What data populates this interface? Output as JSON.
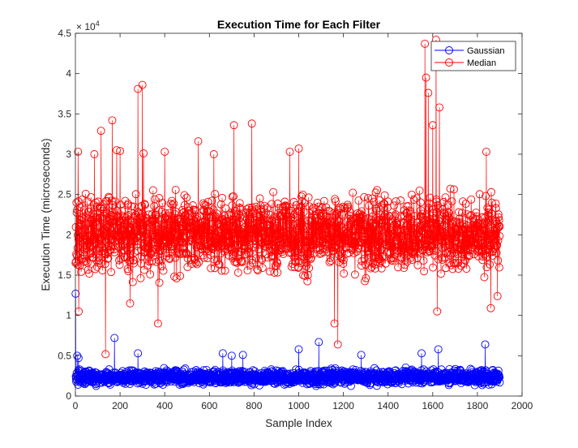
{
  "chart_data": {
    "type": "line",
    "title": "Execution Time for Each Filter",
    "xlabel": "Sample Index",
    "ylabel": "Execution Time (microseconds)",
    "xlim": [
      0,
      2000
    ],
    "ylim": [
      0,
      45000
    ],
    "x_ticks": [
      0,
      200,
      400,
      600,
      800,
      1000,
      1200,
      1400,
      1600,
      1800,
      2000
    ],
    "y_ticks": [
      0,
      5000,
      10000,
      15000,
      20000,
      25000,
      30000,
      35000,
      40000,
      45000
    ],
    "y_tick_labels": [
      "0",
      "0.5",
      "1",
      "1.5",
      "2",
      "2.5",
      "3",
      "3.5",
      "4",
      "4.5"
    ],
    "y_exponent_label": "× 10",
    "y_exponent_power": "4",
    "grid": false,
    "legend_position": "top-right",
    "n_points": 1900,
    "x_step": 1,
    "series": [
      {
        "name": "Gaussian",
        "color": "#0000ff",
        "marker": "circle",
        "typical_range": [
          1200,
          3500
        ],
        "notable_points": [
          {
            "x": 1,
            "y": 12700
          },
          {
            "x": 8,
            "y": 5000
          },
          {
            "x": 14,
            "y": 4700
          },
          {
            "x": 175,
            "y": 7200
          },
          {
            "x": 280,
            "y": 5300
          },
          {
            "x": 660,
            "y": 5300
          },
          {
            "x": 700,
            "y": 5000
          },
          {
            "x": 750,
            "y": 5100
          },
          {
            "x": 1000,
            "y": 5800
          },
          {
            "x": 1090,
            "y": 6700
          },
          {
            "x": 1280,
            "y": 5100
          },
          {
            "x": 1550,
            "y": 5300
          },
          {
            "x": 1625,
            "y": 5800
          },
          {
            "x": 1835,
            "y": 6400
          }
        ]
      },
      {
        "name": "Median",
        "color": "#ff0000",
        "marker": "circle",
        "typical_range": [
          14000,
          26000
        ],
        "notable_points": [
          {
            "x": 12,
            "y": 30300
          },
          {
            "x": 15,
            "y": 10500
          },
          {
            "x": 85,
            "y": 30000
          },
          {
            "x": 115,
            "y": 32900
          },
          {
            "x": 135,
            "y": 5200
          },
          {
            "x": 165,
            "y": 34200
          },
          {
            "x": 185,
            "y": 30500
          },
          {
            "x": 200,
            "y": 30400
          },
          {
            "x": 245,
            "y": 11500
          },
          {
            "x": 280,
            "y": 38100
          },
          {
            "x": 300,
            "y": 38600
          },
          {
            "x": 305,
            "y": 30100
          },
          {
            "x": 370,
            "y": 9000
          },
          {
            "x": 400,
            "y": 30300
          },
          {
            "x": 550,
            "y": 31600
          },
          {
            "x": 620,
            "y": 30000
          },
          {
            "x": 710,
            "y": 33600
          },
          {
            "x": 790,
            "y": 33800
          },
          {
            "x": 960,
            "y": 30300
          },
          {
            "x": 1000,
            "y": 30700
          },
          {
            "x": 1160,
            "y": 9000
          },
          {
            "x": 1175,
            "y": 6400
          },
          {
            "x": 1565,
            "y": 43700
          },
          {
            "x": 1570,
            "y": 39500
          },
          {
            "x": 1580,
            "y": 37600
          },
          {
            "x": 1600,
            "y": 33600
          },
          {
            "x": 1615,
            "y": 44200
          },
          {
            "x": 1630,
            "y": 35800
          },
          {
            "x": 1620,
            "y": 10500
          },
          {
            "x": 1840,
            "y": 30300
          },
          {
            "x": 1860,
            "y": 10900
          },
          {
            "x": 1890,
            "y": 12400
          }
        ]
      }
    ]
  }
}
